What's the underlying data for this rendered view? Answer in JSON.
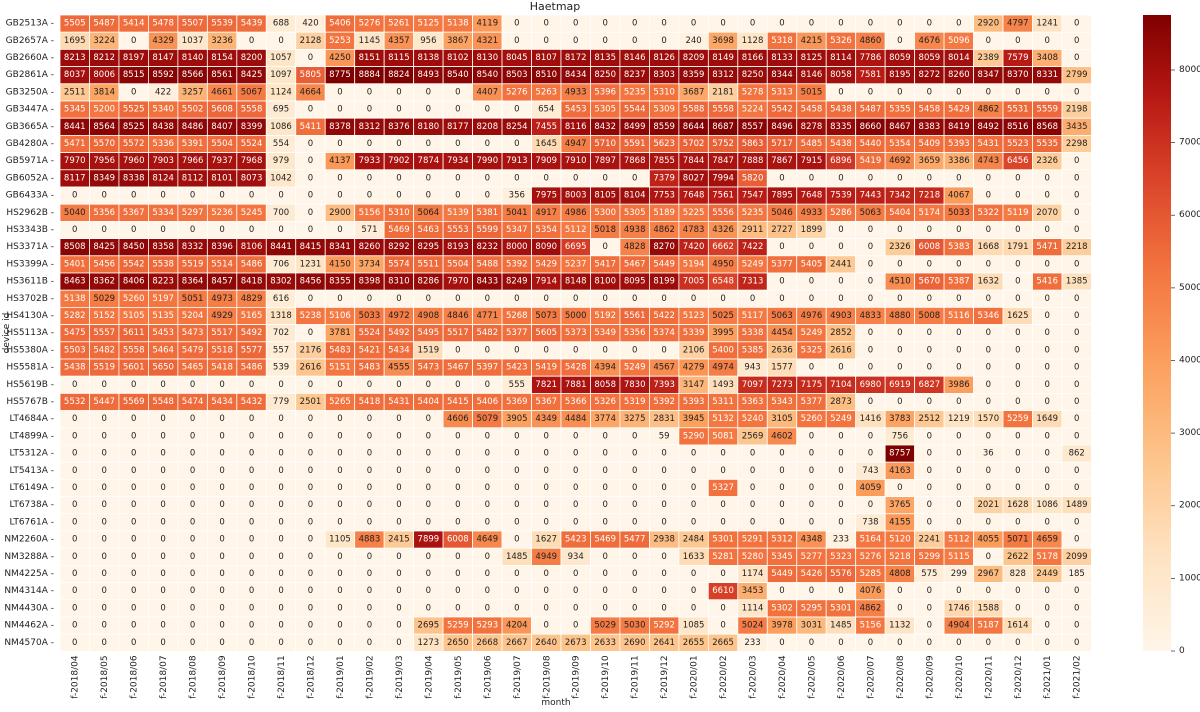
{
  "chart_data": {
    "type": "heatmap",
    "title": "Haetmap",
    "xlabel": "month",
    "ylabel": "device id",
    "colormap": "OrRd",
    "colors": {
      "low": "#fff5e8",
      "mid": "#fc8d59",
      "high": "#7f0000",
      "grid": "#ffffff"
    },
    "vmin": 0,
    "vmax": 8757,
    "colorbar_ticks": [
      0,
      1000,
      2000,
      3000,
      4000,
      5000,
      6000,
      7000,
      8000
    ],
    "x": [
      "f-2018/04",
      "f-2018/05",
      "f-2018/06",
      "f-2018/07",
      "f-2018/08",
      "f-2018/09",
      "f-2018/10",
      "f-2018/11",
      "f-2018/12",
      "f-2019/01",
      "f-2019/02",
      "f-2019/03",
      "f-2019/04",
      "f-2019/05",
      "f-2019/06",
      "f-2019/07",
      "f-2019/08",
      "f-2019/09",
      "f-2019/10",
      "f-2019/11",
      "f-2019/12",
      "f-2020/01",
      "f-2020/02",
      "f-2020/03",
      "f-2020/04",
      "f-2020/05",
      "f-2020/06",
      "f-2020/07",
      "f-2020/08",
      "f-2020/09",
      "f-2020/10",
      "f-2020/11",
      "f-2020/12",
      "f-2021/01",
      "f-2021/02"
    ],
    "y": [
      "GB2513A",
      "GB2657A",
      "GB2660A",
      "GB2861A",
      "GB3250A",
      "GB3447A",
      "GB3665A",
      "GB4280A",
      "GB5971A",
      "GB6052A",
      "GB6433A",
      "HS2962B",
      "HS3343B",
      "HS3371A",
      "HS3399A",
      "HS3611B",
      "HS3702B",
      "HS4130A",
      "HS5113A",
      "HS5380A",
      "HS5581A",
      "HS5619B",
      "HS5767B",
      "LT4684A",
      "LT4899A",
      "LT5312A",
      "LT5413A",
      "LT6149A",
      "LT6738A",
      "LT6761A",
      "NM2260A",
      "NM3288A",
      "NM4225A",
      "NM4314A",
      "NM4430A",
      "NM4462A",
      "NM4570A"
    ],
    "values": [
      [
        5505,
        5487,
        5414,
        5478,
        5507,
        5539,
        5439,
        688,
        420,
        5406,
        5276,
        5261,
        5125,
        5138,
        4119,
        0,
        0,
        0,
        0,
        0,
        0,
        0,
        0,
        0,
        0,
        0,
        0,
        0,
        0,
        0,
        0,
        2920,
        4797,
        1241,
        0
      ],
      [
        1695,
        3224,
        0,
        4329,
        1037,
        3236,
        0,
        0,
        2128,
        5253,
        1145,
        4357,
        956,
        3867,
        4321,
        0,
        0,
        0,
        0,
        0,
        0,
        240,
        3698,
        1128,
        5318,
        4215,
        5326,
        4860,
        0,
        4676,
        5096,
        0,
        0,
        0,
        0
      ],
      [
        8213,
        8212,
        8197,
        8147,
        8140,
        8154,
        8200,
        1057,
        0,
        4250,
        8151,
        8115,
        8138,
        8102,
        8130,
        8045,
        8107,
        8172,
        8135,
        8146,
        8126,
        8209,
        8149,
        8166,
        8133,
        8125,
        8114,
        7786,
        8059,
        8059,
        8014,
        2389,
        7579,
        3408,
        0
      ],
      [
        8037,
        8006,
        8515,
        8592,
        8566,
        8561,
        8425,
        1097,
        5805,
        8775,
        8884,
        8824,
        8493,
        8540,
        8540,
        8503,
        8510,
        8434,
        8250,
        8237,
        8303,
        8359,
        8312,
        8250,
        8344,
        8146,
        8058,
        7581,
        8195,
        8272,
        8260,
        8347,
        8370,
        8331,
        2799
      ],
      [
        2511,
        3814,
        0,
        422,
        3257,
        4661,
        5067,
        1124,
        4664,
        0,
        0,
        0,
        0,
        0,
        4407,
        5276,
        5263,
        4933,
        5396,
        5235,
        5310,
        3687,
        2181,
        5278,
        5313,
        5015,
        0,
        0,
        0,
        0,
        0,
        0,
        0,
        0,
        0
      ],
      [
        5345,
        5200,
        5525,
        5340,
        5502,
        5608,
        5558,
        695,
        0,
        0,
        0,
        0,
        0,
        0,
        0,
        0,
        654,
        5453,
        5305,
        5544,
        5309,
        5588,
        5558,
        5224,
        5542,
        5458,
        5438,
        5487,
        5355,
        5458,
        5429,
        4862,
        5531,
        5559,
        2198
      ],
      [
        8441,
        8564,
        8525,
        8438,
        8486,
        8407,
        8399,
        1086,
        5411,
        8378,
        8312,
        8376,
        8180,
        8177,
        8208,
        8254,
        7455,
        8116,
        8432,
        8499,
        8559,
        8644,
        8687,
        8557,
        8496,
        8278,
        8335,
        8660,
        8467,
        8383,
        8419,
        8492,
        8516,
        8568,
        3435
      ],
      [
        5471,
        5570,
        5572,
        5336,
        5391,
        5504,
        5524,
        554,
        0,
        0,
        0,
        0,
        0,
        0,
        0,
        0,
        1645,
        4947,
        5710,
        5591,
        5623,
        5702,
        5752,
        5863,
        5717,
        5485,
        5438,
        5440,
        5354,
        5409,
        5393,
        5431,
        5523,
        5535,
        2298
      ],
      [
        7970,
        7956,
        7960,
        7903,
        7966,
        7937,
        7968,
        979,
        0,
        4137,
        7933,
        7902,
        7874,
        7934,
        7990,
        7913,
        7909,
        7910,
        7897,
        7868,
        7855,
        7844,
        7847,
        7888,
        7867,
        7915,
        6896,
        5419,
        4692,
        3659,
        3386,
        4743,
        6456,
        2326,
        0
      ],
      [
        8117,
        8349,
        8338,
        8124,
        8112,
        8101,
        8073,
        1042,
        0,
        0,
        0,
        0,
        0,
        0,
        0,
        0,
        0,
        0,
        0,
        0,
        7379,
        8027,
        7994,
        5820,
        0,
        0,
        0,
        0,
        0,
        0,
        0,
        0,
        0,
        0,
        0
      ],
      [
        0,
        0,
        0,
        0,
        0,
        0,
        0,
        0,
        0,
        0,
        0,
        0,
        0,
        0,
        0,
        356,
        7975,
        8003,
        8105,
        8104,
        7753,
        7648,
        7561,
        7547,
        7895,
        7648,
        7539,
        7443,
        7342,
        7218,
        4067,
        0,
        0,
        0,
        0
      ],
      [
        5040,
        5356,
        5367,
        5334,
        5297,
        5236,
        5245,
        700,
        0,
        2900,
        5156,
        5310,
        5064,
        5139,
        5381,
        5041,
        4917,
        4986,
        5300,
        5305,
        5189,
        5225,
        5556,
        5235,
        5046,
        4933,
        5286,
        5063,
        5404,
        5174,
        5033,
        5322,
        5119,
        2070,
        0
      ],
      [
        0,
        0,
        0,
        0,
        0,
        0,
        0,
        0,
        0,
        0,
        571,
        5469,
        5463,
        5553,
        5599,
        5347,
        5354,
        5112,
        5018,
        4938,
        4862,
        4783,
        4326,
        2911,
        2727,
        1899,
        0,
        0,
        0,
        0,
        0,
        0,
        0,
        0,
        0
      ],
      [
        8508,
        8425,
        8450,
        8358,
        8332,
        8396,
        8106,
        8441,
        8415,
        8341,
        8260,
        8292,
        8295,
        8193,
        8232,
        8000,
        8090,
        6695,
        0,
        4828,
        8270,
        7420,
        6662,
        7422,
        0,
        0,
        0,
        0,
        2326,
        6008,
        5383,
        1668,
        1791,
        5471,
        2218
      ],
      [
        5401,
        5456,
        5542,
        5538,
        5519,
        5514,
        5486,
        706,
        1231,
        4150,
        3734,
        5574,
        5511,
        5504,
        5488,
        5392,
        5429,
        5237,
        5417,
        5467,
        5449,
        5194,
        4950,
        5249,
        5377,
        5405,
        2441,
        0,
        0,
        0,
        0,
        0,
        0,
        0,
        0
      ],
      [
        8463,
        8362,
        8406,
        8223,
        8364,
        8457,
        8418,
        8302,
        8456,
        8355,
        8398,
        8310,
        8286,
        7970,
        8433,
        8249,
        7914,
        8148,
        8100,
        8095,
        8199,
        7005,
        6548,
        7313,
        0,
        0,
        0,
        0,
        4510,
        5670,
        5387,
        1632,
        0,
        5416,
        1385
      ],
      [
        5138,
        5029,
        5260,
        5197,
        5051,
        4973,
        4829,
        616,
        0,
        0,
        0,
        0,
        0,
        0,
        0,
        0,
        0,
        0,
        0,
        0,
        0,
        0,
        0,
        0,
        0,
        0,
        0,
        0,
        0,
        0,
        0,
        0,
        0,
        0,
        0
      ],
      [
        5282,
        5152,
        5105,
        5135,
        5204,
        4929,
        5165,
        1318,
        5238,
        5106,
        5033,
        4972,
        4908,
        4846,
        4771,
        5268,
        5073,
        5000,
        5192,
        5561,
        5422,
        5123,
        5025,
        5117,
        5063,
        4976,
        4903,
        4833,
        4880,
        5008,
        5116,
        5346,
        1625,
        0,
        0
      ],
      [
        5475,
        5557,
        5611,
        5453,
        5473,
        5517,
        5492,
        702,
        0,
        3781,
        5524,
        5492,
        5495,
        5517,
        5482,
        5377,
        5605,
        5373,
        5349,
        5356,
        5374,
        5339,
        3995,
        5338,
        4454,
        5249,
        2852,
        0,
        0,
        0,
        0,
        0,
        0,
        0,
        0
      ],
      [
        5503,
        5482,
        5558,
        5464,
        5479,
        5518,
        5577,
        557,
        2176,
        5483,
        5421,
        5434,
        1519,
        0,
        0,
        0,
        0,
        0,
        0,
        0,
        0,
        2106,
        5400,
        5385,
        2636,
        5325,
        2616,
        0,
        0,
        0,
        0,
        0,
        0,
        0,
        0
      ],
      [
        5438,
        5519,
        5601,
        5650,
        5465,
        5418,
        5486,
        539,
        2616,
        5151,
        5483,
        4555,
        5473,
        5467,
        5397,
        5423,
        5419,
        5428,
        4394,
        5249,
        4567,
        4279,
        4974,
        943,
        1577,
        0,
        0,
        0,
        0,
        0,
        0,
        0,
        0,
        0,
        0
      ],
      [
        0,
        0,
        0,
        0,
        0,
        0,
        0,
        0,
        0,
        0,
        0,
        0,
        0,
        0,
        0,
        555,
        7821,
        7881,
        8058,
        7830,
        7393,
        3147,
        1493,
        7097,
        7273,
        7175,
        7104,
        6980,
        6919,
        6827,
        3986,
        0,
        0,
        0,
        0
      ],
      [
        5532,
        5447,
        5569,
        5548,
        5474,
        5434,
        5432,
        779,
        2501,
        5265,
        5418,
        5431,
        5404,
        5415,
        5406,
        5369,
        5367,
        5366,
        5326,
        5319,
        5392,
        5393,
        5311,
        5363,
        5343,
        5377,
        2873,
        0,
        0,
        0,
        0,
        0,
        0,
        0,
        0
      ],
      [
        0,
        0,
        0,
        0,
        0,
        0,
        0,
        0,
        0,
        0,
        0,
        0,
        0,
        4606,
        5079,
        3905,
        4349,
        4484,
        3774,
        3275,
        2831,
        3945,
        5132,
        5240,
        3105,
        5260,
        5249,
        1416,
        3783,
        2512,
        1219,
        1570,
        5259,
        1649,
        0
      ],
      [
        0,
        0,
        0,
        0,
        0,
        0,
        0,
        0,
        0,
        0,
        0,
        0,
        0,
        0,
        0,
        0,
        0,
        0,
        0,
        0,
        59,
        5290,
        5081,
        2569,
        4602,
        0,
        0,
        0,
        756,
        0,
        0,
        0,
        0,
        0,
        0
      ],
      [
        0,
        0,
        0,
        0,
        0,
        0,
        0,
        0,
        0,
        0,
        0,
        0,
        0,
        0,
        0,
        0,
        0,
        0,
        0,
        0,
        0,
        0,
        0,
        0,
        0,
        0,
        0,
        0,
        8757,
        0,
        0,
        36,
        0,
        0,
        862
      ],
      [
        0,
        0,
        0,
        0,
        0,
        0,
        0,
        0,
        0,
        0,
        0,
        0,
        0,
        0,
        0,
        0,
        0,
        0,
        0,
        0,
        0,
        0,
        0,
        0,
        0,
        0,
        0,
        743,
        4163,
        0,
        0,
        0,
        0,
        0,
        0
      ],
      [
        0,
        0,
        0,
        0,
        0,
        0,
        0,
        0,
        0,
        0,
        0,
        0,
        0,
        0,
        0,
        0,
        0,
        0,
        0,
        0,
        0,
        0,
        5327,
        0,
        0,
        0,
        0,
        4059,
        0,
        0,
        0,
        0,
        0,
        0,
        0
      ],
      [
        0,
        0,
        0,
        0,
        0,
        0,
        0,
        0,
        0,
        0,
        0,
        0,
        0,
        0,
        0,
        0,
        0,
        0,
        0,
        0,
        0,
        0,
        0,
        0,
        0,
        0,
        0,
        0,
        3765,
        0,
        0,
        2021,
        1628,
        1086,
        1489
      ],
      [
        0,
        0,
        0,
        0,
        0,
        0,
        0,
        0,
        0,
        0,
        0,
        0,
        0,
        0,
        0,
        0,
        0,
        0,
        0,
        0,
        0,
        0,
        0,
        0,
        0,
        0,
        0,
        738,
        4155,
        0,
        0,
        0,
        0,
        0,
        0
      ],
      [
        0,
        0,
        0,
        0,
        0,
        0,
        0,
        0,
        0,
        1105,
        4883,
        2415,
        7899,
        6008,
        4649,
        0,
        1627,
        5423,
        5469,
        5477,
        2938,
        2484,
        5301,
        5291,
        5312,
        4348,
        233,
        5164,
        5120,
        2241,
        5112,
        4055,
        5071,
        4659,
        0
      ],
      [
        0,
        0,
        0,
        0,
        0,
        0,
        0,
        0,
        0,
        0,
        0,
        0,
        0,
        0,
        0,
        1485,
        4949,
        934,
        0,
        0,
        0,
        1633,
        5281,
        5280,
        5345,
        5277,
        5323,
        5276,
        5218,
        5299,
        5115,
        0,
        2622,
        5178,
        2099
      ],
      [
        0,
        0,
        0,
        0,
        0,
        0,
        0,
        0,
        0,
        0,
        0,
        0,
        0,
        0,
        0,
        0,
        0,
        0,
        0,
        0,
        0,
        0,
        0,
        1174,
        5449,
        5426,
        5576,
        5285,
        4808,
        575,
        299,
        2967,
        828,
        2449,
        185
      ],
      [
        0,
        0,
        0,
        0,
        0,
        0,
        0,
        0,
        0,
        0,
        0,
        0,
        0,
        0,
        0,
        0,
        0,
        0,
        0,
        0,
        0,
        0,
        6610,
        3453,
        0,
        0,
        0,
        4076,
        0,
        0,
        0,
        0,
        0,
        0,
        0
      ],
      [
        0,
        0,
        0,
        0,
        0,
        0,
        0,
        0,
        0,
        0,
        0,
        0,
        0,
        0,
        0,
        0,
        0,
        0,
        0,
        0,
        0,
        0,
        0,
        1114,
        5302,
        5295,
        5301,
        4862,
        0,
        0,
        1746,
        1588,
        0,
        0,
        0
      ],
      [
        0,
        0,
        0,
        0,
        0,
        0,
        0,
        0,
        0,
        0,
        0,
        0,
        2695,
        5259,
        5293,
        4204,
        0,
        0,
        5029,
        5030,
        5292,
        1085,
        0,
        5024,
        3978,
        3031,
        1485,
        5156,
        1132,
        0,
        4904,
        5187,
        1614,
        0,
        0
      ],
      [
        0,
        0,
        0,
        0,
        0,
        0,
        0,
        0,
        0,
        0,
        0,
        0,
        1273,
        2650,
        2668,
        2667,
        2640,
        2673,
        2633,
        2690,
        2641,
        2655,
        2665,
        233,
        0,
        0,
        0,
        0,
        0,
        0,
        0,
        0,
        0,
        0,
        0
      ]
    ]
  }
}
